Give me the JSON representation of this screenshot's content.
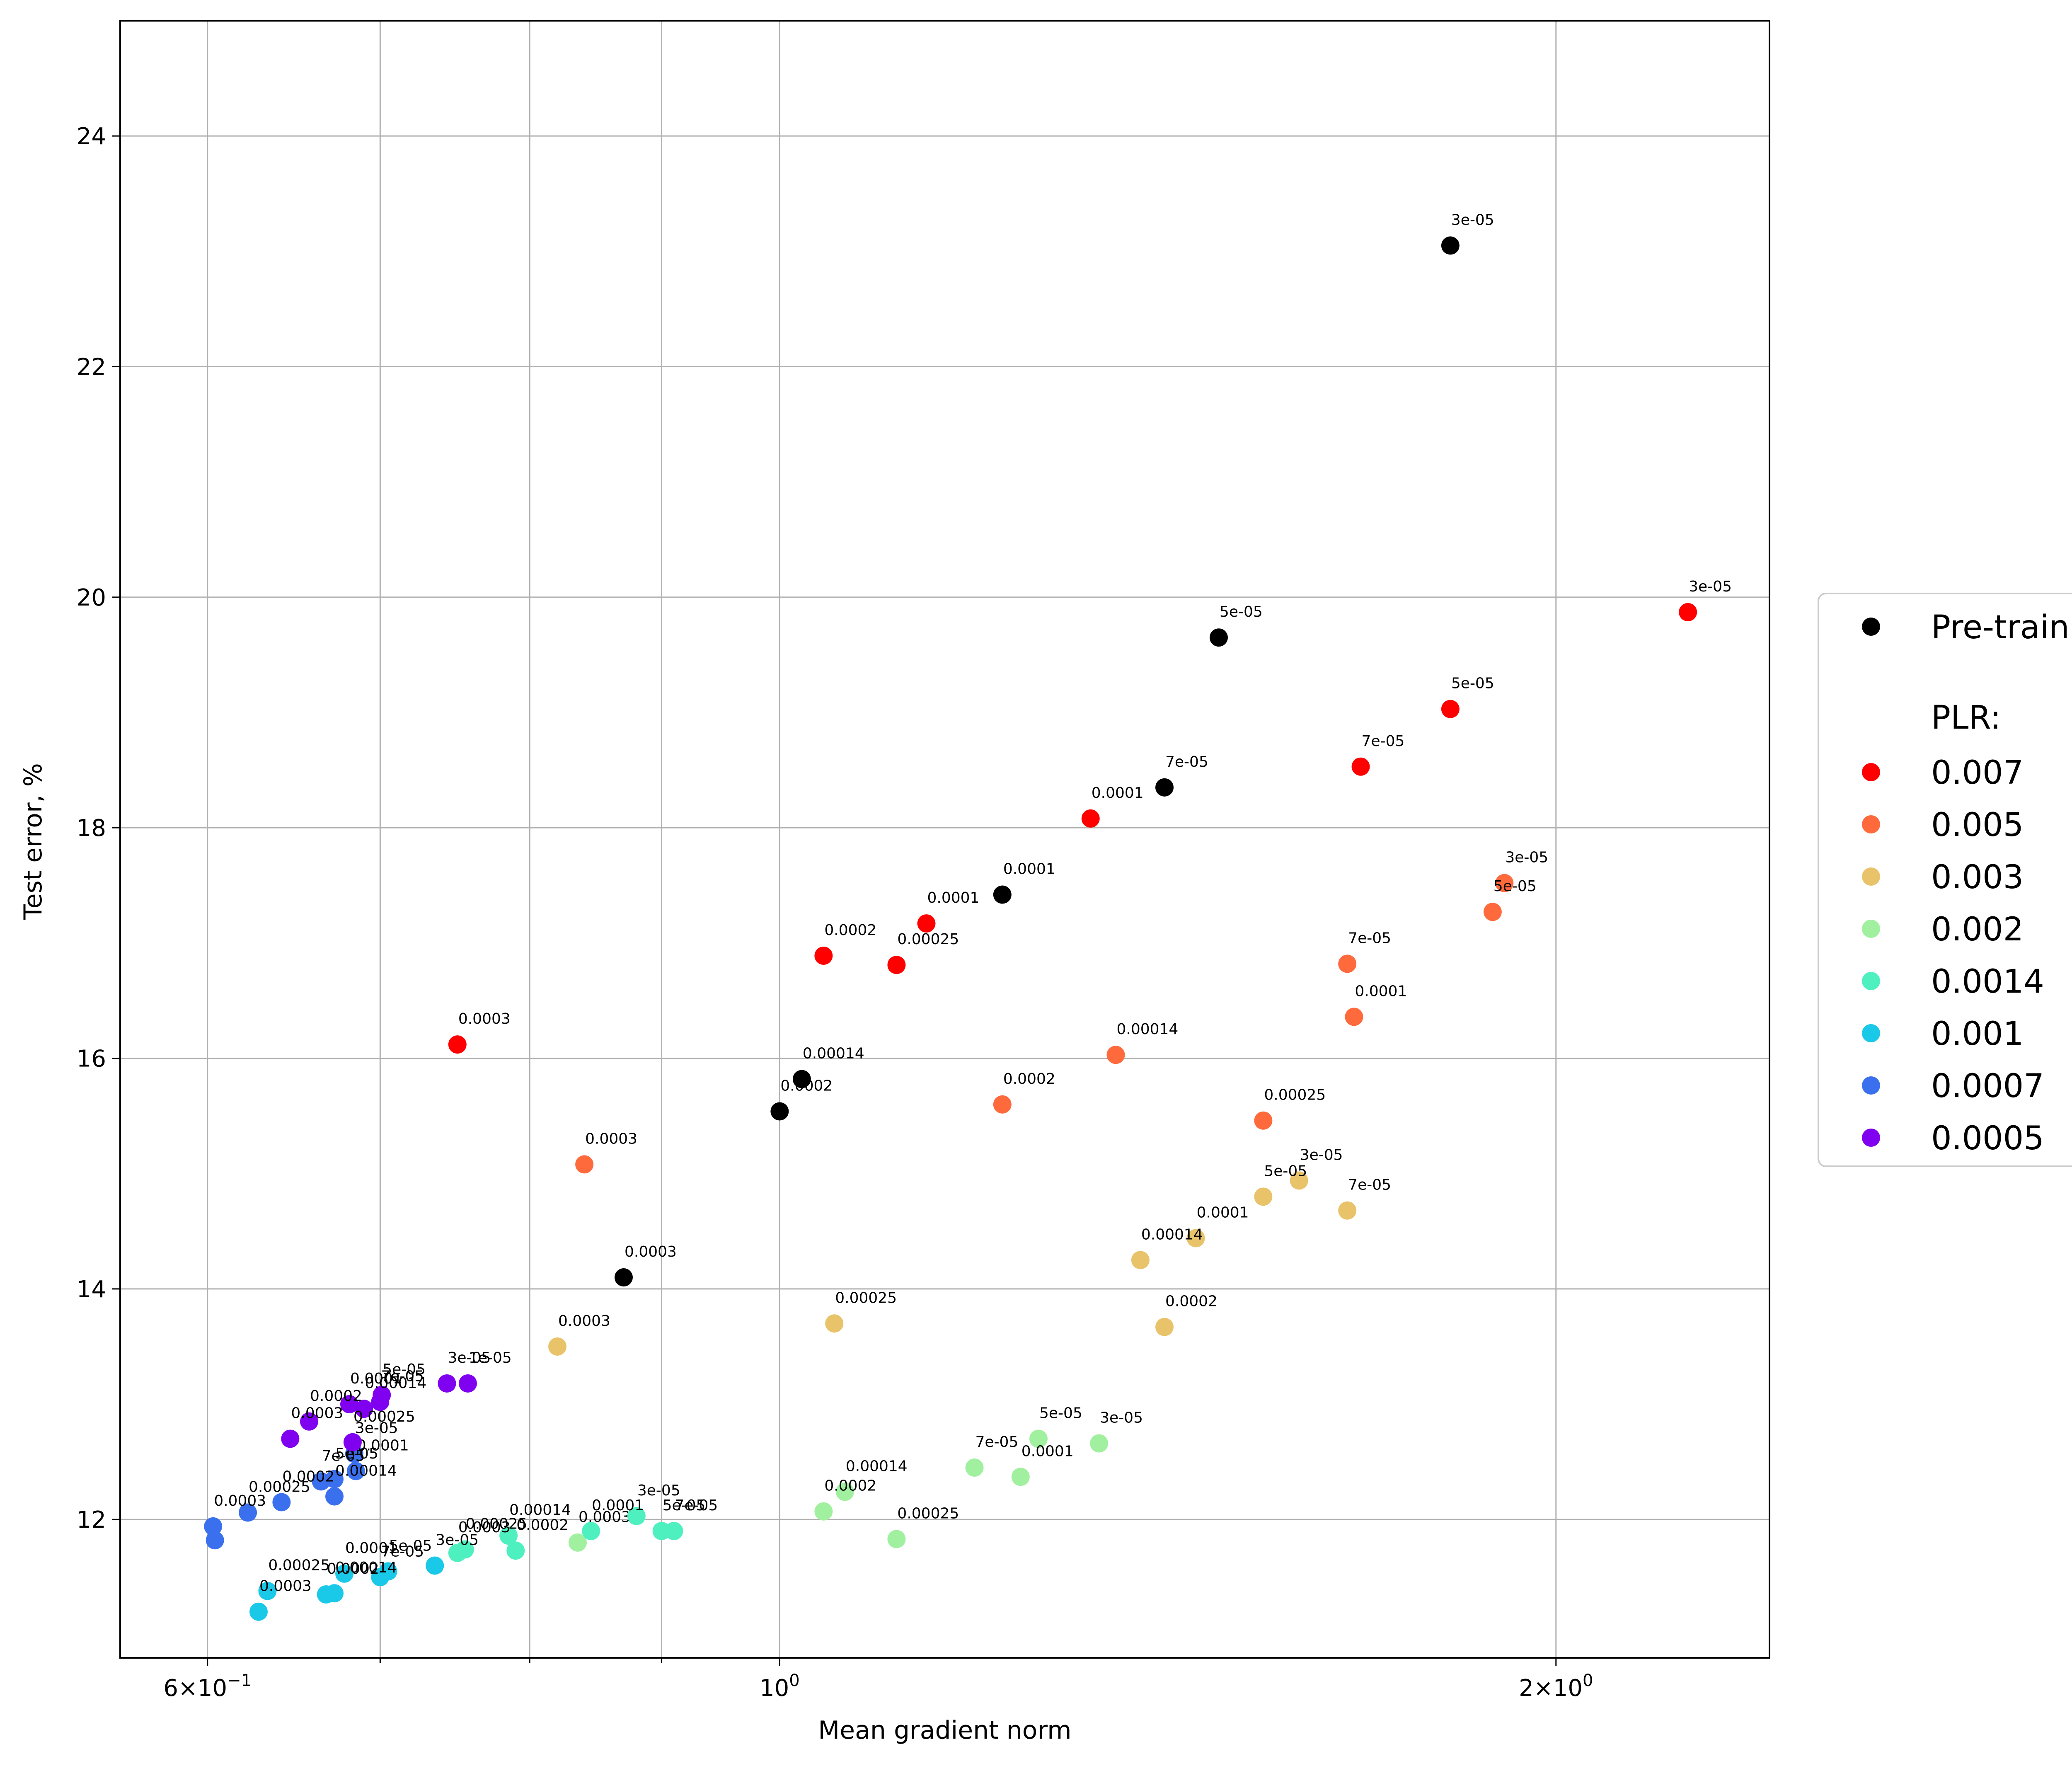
{
  "chart_data": {
    "type": "scatter",
    "title": "",
    "xlabel": "Mean gradient norm",
    "ylabel": "Test error, %",
    "xscale": "log",
    "xlim": [
      0.555,
      2.42
    ],
    "ylim": [
      10.8,
      25.0
    ],
    "grid": true,
    "x_ticks": [
      {
        "value": 0.6,
        "label_base": "6×10",
        "label_exp": "−1",
        "major": true
      },
      {
        "value": 0.7,
        "major": false
      },
      {
        "value": 0.8,
        "major": false
      },
      {
        "value": 0.9,
        "major": false
      },
      {
        "value": 1.0,
        "label": "10",
        "label_exp": "0",
        "major": true
      },
      {
        "value": 2.0,
        "label_base": "2×10",
        "label_exp": "0",
        "major": true
      }
    ],
    "y_ticks": [
      12,
      14,
      16,
      18,
      20,
      22,
      24
    ],
    "legend": {
      "position": "outside-right",
      "title": "PLR:",
      "first_entry": "Pre-train"
    },
    "series": [
      {
        "name": "Pre-train",
        "color": "#000000",
        "points": [
          {
            "x": 1.82,
            "y": 23.05,
            "label": "3e-05"
          },
          {
            "x": 1.48,
            "y": 19.65,
            "label": "5e-05"
          },
          {
            "x": 1.41,
            "y": 18.35,
            "label": "7e-05"
          },
          {
            "x": 1.22,
            "y": 17.42,
            "label": "0.0001"
          },
          {
            "x": 1.02,
            "y": 15.82,
            "label": "0.00014"
          },
          {
            "x": 1.0,
            "y": 15.54,
            "label": "0.0002"
          },
          {
            "x": 0.87,
            "y": 14.1,
            "label": "0.0003"
          }
        ]
      },
      {
        "name": "0.007",
        "color": "#ff0000",
        "points": [
          {
            "x": 2.25,
            "y": 19.87,
            "label": "3e-05"
          },
          {
            "x": 1.82,
            "y": 19.03,
            "label": "5e-05"
          },
          {
            "x": 1.68,
            "y": 18.53,
            "label": "7e-05"
          },
          {
            "x": 1.32,
            "y": 18.08,
            "label": "0.0001"
          },
          {
            "x": 1.14,
            "y": 17.17,
            "label": "0.0001"
          },
          {
            "x": 1.04,
            "y": 16.89,
            "label": "0.0002"
          },
          {
            "x": 1.11,
            "y": 16.81,
            "label": "0.00025"
          },
          {
            "x": 0.75,
            "y": 16.12,
            "label": "0.0003"
          }
        ]
      },
      {
        "name": "0.005",
        "color": "#ff6a3d",
        "points": [
          {
            "x": 1.91,
            "y": 17.52,
            "label": "3e-05"
          },
          {
            "x": 1.89,
            "y": 17.27,
            "label": "5e-05"
          },
          {
            "x": 1.66,
            "y": 16.82,
            "label": "7e-05"
          },
          {
            "x": 1.67,
            "y": 16.36,
            "label": "0.0001"
          },
          {
            "x": 1.35,
            "y": 16.03,
            "label": "0.00014"
          },
          {
            "x": 1.22,
            "y": 15.6,
            "label": "0.0002"
          },
          {
            "x": 1.54,
            "y": 15.46,
            "label": "0.00025"
          },
          {
            "x": 0.84,
            "y": 15.08,
            "label": "0.0003"
          }
        ]
      },
      {
        "name": "0.003",
        "color": "#e8c36a",
        "points": [
          {
            "x": 1.59,
            "y": 14.94,
            "label": "3e-05"
          },
          {
            "x": 1.54,
            "y": 14.8,
            "label": "5e-05"
          },
          {
            "x": 1.66,
            "y": 14.68,
            "label": "7e-05"
          },
          {
            "x": 1.45,
            "y": 14.44,
            "label": "0.0001"
          },
          {
            "x": 1.38,
            "y": 14.25,
            "label": "0.00014"
          },
          {
            "x": 1.41,
            "y": 13.67,
            "label": "0.0002"
          },
          {
            "x": 1.05,
            "y": 13.7,
            "label": "0.00025"
          },
          {
            "x": 0.82,
            "y": 13.5,
            "label": "0.0003"
          }
        ]
      },
      {
        "name": "0.002",
        "color": "#a0f0a0",
        "points": [
          {
            "x": 1.33,
            "y": 12.66,
            "label": "3e-05"
          },
          {
            "x": 1.26,
            "y": 12.7,
            "label": "5e-05"
          },
          {
            "x": 1.19,
            "y": 12.45,
            "label": "7e-05"
          },
          {
            "x": 1.24,
            "y": 12.37,
            "label": "0.0001"
          },
          {
            "x": 1.06,
            "y": 12.24,
            "label": "0.00014"
          },
          {
            "x": 1.04,
            "y": 12.07,
            "label": "0.0002"
          },
          {
            "x": 1.11,
            "y": 11.83,
            "label": "0.00025"
          },
          {
            "x": 0.835,
            "y": 11.8,
            "label": "0.0003"
          }
        ]
      },
      {
        "name": "0.0014",
        "color": "#4ff0c0",
        "points": [
          {
            "x": 0.88,
            "y": 12.03,
            "label": "3e-05"
          },
          {
            "x": 0.9,
            "y": 11.9,
            "label": "5e-05"
          },
          {
            "x": 0.91,
            "y": 11.9,
            "label": "7e-05"
          },
          {
            "x": 0.845,
            "y": 11.9,
            "label": "0.0001"
          },
          {
            "x": 0.785,
            "y": 11.86,
            "label": "0.00014"
          },
          {
            "x": 0.79,
            "y": 11.73,
            "label": "0.0002"
          },
          {
            "x": 0.755,
            "y": 11.74,
            "label": "0.00025"
          },
          {
            "x": 0.75,
            "y": 11.71,
            "label": "0.0003"
          }
        ]
      },
      {
        "name": "0.001",
        "color": "#1ac8e8",
        "points": [
          {
            "x": 0.735,
            "y": 11.6,
            "label": "3e-05"
          },
          {
            "x": 0.705,
            "y": 11.55,
            "label": "5e-05"
          },
          {
            "x": 0.7,
            "y": 11.5,
            "label": "7e-05"
          },
          {
            "x": 0.678,
            "y": 11.53,
            "label": "0.0001"
          },
          {
            "x": 0.672,
            "y": 11.36,
            "label": "0.00014"
          },
          {
            "x": 0.667,
            "y": 11.35,
            "label": "0.0002"
          },
          {
            "x": 0.633,
            "y": 11.38,
            "label": "0.00025"
          },
          {
            "x": 0.628,
            "y": 11.2,
            "label": "0.0003"
          }
        ]
      },
      {
        "name": "0.0007",
        "color": "#3a70ee",
        "points": [
          {
            "x": 0.684,
            "y": 12.57,
            "label": "3e-05"
          },
          {
            "x": 0.672,
            "y": 12.35,
            "label": "5e-05"
          },
          {
            "x": 0.664,
            "y": 12.33,
            "label": "7e-05"
          },
          {
            "x": 0.685,
            "y": 12.42,
            "label": "0.0001"
          },
          {
            "x": 0.672,
            "y": 12.2,
            "label": "0.00014"
          },
          {
            "x": 0.641,
            "y": 12.15,
            "label": "0.0002"
          },
          {
            "x": 0.622,
            "y": 12.06,
            "label": "0.00025"
          },
          {
            "x": 0.603,
            "y": 11.94,
            "label": "0.0003"
          },
          {
            "x": 0.604,
            "y": 11.82,
            "label": ""
          }
        ]
      },
      {
        "name": "0.0005",
        "color": "#8000f0",
        "points": [
          {
            "x": 0.743,
            "y": 13.18,
            "label": "3e-05"
          },
          {
            "x": 0.757,
            "y": 13.18,
            "label": "1e-05"
          },
          {
            "x": 0.701,
            "y": 13.08,
            "label": "5e-05"
          },
          {
            "x": 0.7,
            "y": 13.02,
            "label": "7e-05"
          },
          {
            "x": 0.681,
            "y": 13.0,
            "label": "0.0001"
          },
          {
            "x": 0.69,
            "y": 12.96,
            "label": "0.00014"
          },
          {
            "x": 0.657,
            "y": 12.85,
            "label": "0.0002"
          },
          {
            "x": 0.683,
            "y": 12.67,
            "label": "0.00025"
          },
          {
            "x": 0.646,
            "y": 12.7,
            "label": "0.0003"
          }
        ]
      }
    ]
  }
}
